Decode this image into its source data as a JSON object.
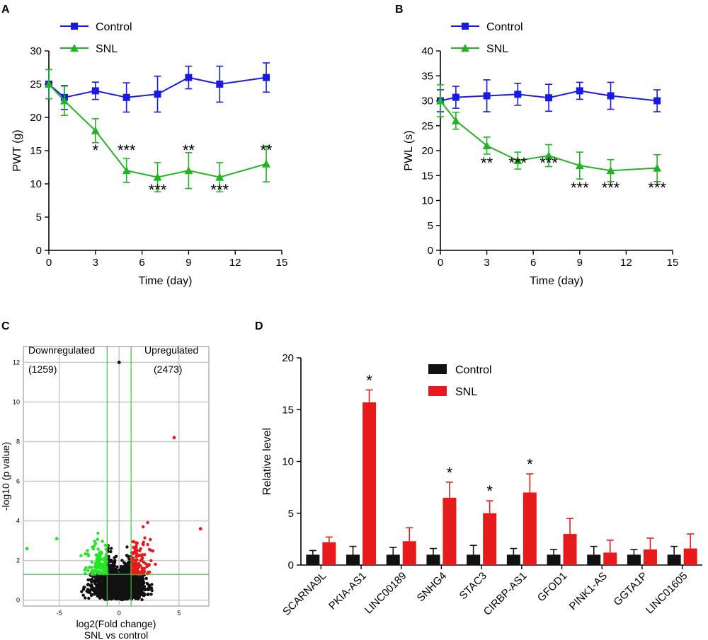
{
  "chart_data": [
    {
      "panel": "A",
      "type": "line",
      "xlabel": "Time (day)",
      "ylabel": "PWT (g)",
      "xlim": [
        0,
        15
      ],
      "ylim": [
        0,
        30
      ],
      "xticks": [
        0,
        3,
        6,
        9,
        12,
        15
      ],
      "yticks": [
        0,
        5,
        10,
        15,
        20,
        25,
        30
      ],
      "legend": "top-left",
      "series": [
        {
          "name": "Control",
          "color": "#1a1ae6",
          "marker": "square",
          "x": [
            0,
            1,
            3,
            5,
            7,
            9,
            11,
            14
          ],
          "y": [
            25,
            23,
            24,
            23,
            23.5,
            26,
            25,
            26
          ],
          "err": [
            2.2,
            1.8,
            1.3,
            2.2,
            2.7,
            1.7,
            2.7,
            2.2
          ]
        },
        {
          "name": "SNL",
          "color": "#22b522",
          "marker": "triangle",
          "x": [
            0,
            1,
            3,
            5,
            7,
            9,
            11,
            14
          ],
          "y": [
            25,
            22.5,
            18,
            12,
            11,
            12,
            11,
            13
          ],
          "err": [
            2.2,
            2.2,
            1.8,
            1.8,
            2.2,
            2.7,
            2.2,
            2.7
          ]
        }
      ],
      "annotations": [
        {
          "x": 3,
          "text": "*",
          "row": 0
        },
        {
          "x": 5,
          "text": "***",
          "row": 0
        },
        {
          "x": 7,
          "text": "***",
          "row": 1
        },
        {
          "x": 9,
          "text": "**",
          "row": 0
        },
        {
          "x": 11,
          "text": "***",
          "row": 1
        },
        {
          "x": 14,
          "text": "**",
          "row": 0
        }
      ]
    },
    {
      "panel": "B",
      "type": "line",
      "xlabel": "Time (day)",
      "ylabel": "PWL (s)",
      "xlim": [
        0,
        15
      ],
      "ylim": [
        0,
        40
      ],
      "xticks": [
        0,
        3,
        6,
        9,
        12,
        15
      ],
      "yticks": [
        0,
        5,
        10,
        15,
        20,
        25,
        30,
        35,
        40
      ],
      "legend": "top-left",
      "series": [
        {
          "name": "Control",
          "color": "#1a1ae6",
          "marker": "square",
          "x": [
            0,
            1,
            3,
            5,
            7,
            9,
            11,
            14
          ],
          "y": [
            30,
            30.7,
            31,
            31.3,
            30.6,
            32,
            31,
            30
          ],
          "err": [
            2.2,
            2.2,
            3.2,
            2.2,
            2.7,
            1.7,
            2.7,
            2.2
          ]
        },
        {
          "name": "SNL",
          "color": "#22b522",
          "marker": "triangle",
          "x": [
            0,
            1,
            3,
            5,
            7,
            9,
            11,
            14
          ],
          "y": [
            30,
            26,
            21,
            18,
            19,
            17,
            16,
            16.5
          ],
          "err": [
            3.2,
            1.7,
            1.7,
            1.7,
            2.2,
            2.7,
            2.2,
            2.7
          ]
        }
      ],
      "annotations": [
        {
          "x": 3,
          "text": "**",
          "row": 0
        },
        {
          "x": 5,
          "text": "***",
          "row": 0
        },
        {
          "x": 7,
          "text": "***",
          "row": 0
        },
        {
          "x": 9,
          "text": "***",
          "row": 1
        },
        {
          "x": 11,
          "text": "***",
          "row": 1
        },
        {
          "x": 14,
          "text": "***",
          "row": 1
        }
      ]
    },
    {
      "panel": "C",
      "type": "scatter",
      "xlabel": "log2(Fold change)",
      "xlabel2": "SNL vs control",
      "ylabel": "-log10 (p value)",
      "xlim": [
        -8,
        7.5
      ],
      "ylim": [
        -0.3,
        12.8
      ],
      "xticks": [
        -5,
        0,
        5
      ],
      "yticks": [
        0,
        2,
        4,
        6,
        8,
        10,
        12
      ],
      "fc_threshold": [
        -1,
        1
      ],
      "p_threshold": 1.3,
      "down_label": "Downregulated",
      "down_count": "(1259)",
      "up_label": "Upregulated",
      "up_count": "(2473)",
      "colors": {
        "down": "#22e622",
        "up": "#e61a1a",
        "ns": "#111111",
        "threshold": "#44bb44"
      },
      "notable_points": [
        {
          "x": 0,
          "y": 12,
          "class": "ns"
        },
        {
          "x": 4.6,
          "y": 8.2,
          "class": "up"
        },
        {
          "x": 6.8,
          "y": 3.6,
          "class": "up"
        },
        {
          "x": -7.7,
          "y": 2.6,
          "class": "down"
        },
        {
          "x": -5.2,
          "y": 3.1,
          "class": "down"
        }
      ]
    },
    {
      "panel": "D",
      "type": "bar",
      "ylabel": "Relative level",
      "ylim": [
        0,
        20
      ],
      "yticks": [
        0,
        5,
        10,
        15,
        20
      ],
      "legend": "top-center",
      "categories": [
        "SCARNA9L",
        "PKIA-AS1",
        "LINC00189",
        "SNHG4",
        "STAC3",
        "CIRBP-AS1",
        "GFOD1",
        "PINK1-AS",
        "GGTA1P",
        "LINC01605"
      ],
      "series": [
        {
          "name": "Control",
          "color": "#111111",
          "values": [
            1,
            1,
            1,
            1,
            1,
            1,
            1,
            1,
            1,
            1
          ],
          "err": [
            0.4,
            0.8,
            0.7,
            0.6,
            0.9,
            0.6,
            0.5,
            0.8,
            0.5,
            0.8
          ]
        },
        {
          "name": "SNL",
          "color": "#e61a1a",
          "values": [
            2.2,
            15.7,
            2.3,
            6.5,
            5.0,
            7.0,
            3.0,
            1.2,
            1.5,
            1.6
          ],
          "err": [
            0.5,
            1.2,
            1.3,
            1.5,
            1.2,
            1.8,
            1.5,
            1.2,
            1.1,
            1.4
          ]
        }
      ],
      "annotations": [
        {
          "category": "PKIA-AS1",
          "text": "*"
        },
        {
          "category": "SNHG4",
          "text": "*"
        },
        {
          "category": "STAC3",
          "text": "*"
        },
        {
          "category": "CIRBP-AS1",
          "text": "*"
        }
      ]
    }
  ]
}
